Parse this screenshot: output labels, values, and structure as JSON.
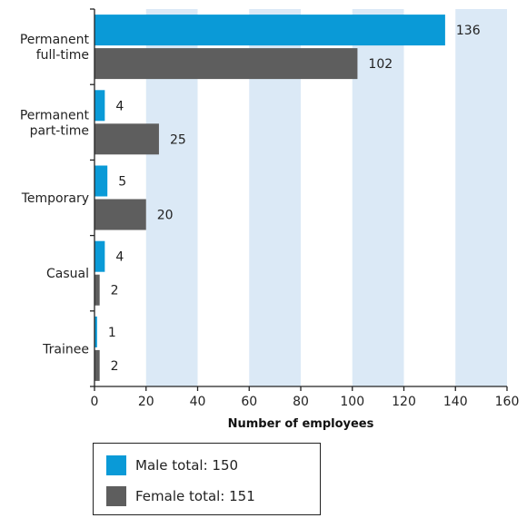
{
  "chart_data": {
    "type": "bar",
    "orientation": "horizontal",
    "categories": [
      "Permanent\nfull-time",
      "Permanent\npart-time",
      "Temporary",
      "Casual",
      "Trainee"
    ],
    "series": [
      {
        "name": "Male",
        "values": [
          136,
          4,
          5,
          4,
          1
        ],
        "color": "#0a9ad7"
      },
      {
        "name": "Female",
        "values": [
          102,
          25,
          20,
          2,
          2
        ],
        "color": "#5e5e5e"
      }
    ],
    "xlabel": "Number of employees",
    "ylabel": "",
    "xlim": [
      0,
      160
    ],
    "xticks": [
      0,
      20,
      40,
      60,
      80,
      100,
      120,
      140,
      160
    ],
    "grid": "alternating vertical bands",
    "band_color": "#dbe9f6",
    "legend_position": "bottom-left"
  },
  "legend": {
    "items": [
      {
        "label": "Male total: 150",
        "color": "#0a9ad7"
      },
      {
        "label": "Female total: 151",
        "color": "#5e5e5e"
      }
    ]
  }
}
